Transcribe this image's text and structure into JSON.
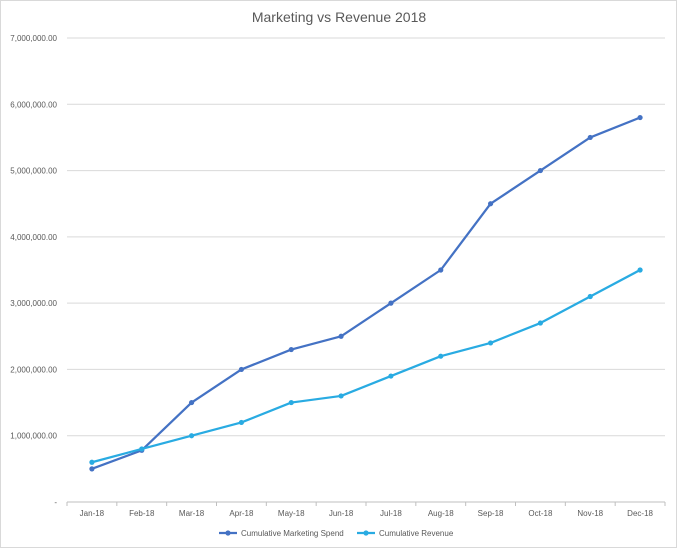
{
  "chart_data": {
    "type": "line",
    "title": "Marketing vs Revenue 2018",
    "xlabel": "",
    "ylabel": "",
    "categories": [
      "Jan-18",
      "Feb-18",
      "Mar-18",
      "Apr-18",
      "May-18",
      "Jun-18",
      "Jul-18",
      "Aug-18",
      "Sep-18",
      "Oct-18",
      "Nov-18",
      "Dec-18"
    ],
    "ylim": [
      0,
      7000000
    ],
    "yticks": [
      0,
      1000000,
      2000000,
      3000000,
      4000000,
      5000000,
      6000000,
      7000000
    ],
    "ytick_labels": [
      "-",
      "1,000,000.00",
      "2,000,000.00",
      "3,000,000.00",
      "4,000,000.00",
      "5,000,000.00",
      "6,000,000.00",
      "7,000,000.00"
    ],
    "grid": true,
    "legend_position": "bottom",
    "series": [
      {
        "name": "Cumulative Marketing Spend",
        "color": "#4472c4",
        "values": [
          500000,
          780000,
          1500000,
          2000000,
          2300000,
          2500000,
          3000000,
          3500000,
          4500000,
          5000000,
          5500000,
          5800000
        ]
      },
      {
        "name": "Cumulative Revenue",
        "color": "#29abe2",
        "values": [
          600000,
          800000,
          1000000,
          1200000,
          1500000,
          1600000,
          1900000,
          2200000,
          2400000,
          2700000,
          3100000,
          3500000
        ]
      }
    ]
  }
}
